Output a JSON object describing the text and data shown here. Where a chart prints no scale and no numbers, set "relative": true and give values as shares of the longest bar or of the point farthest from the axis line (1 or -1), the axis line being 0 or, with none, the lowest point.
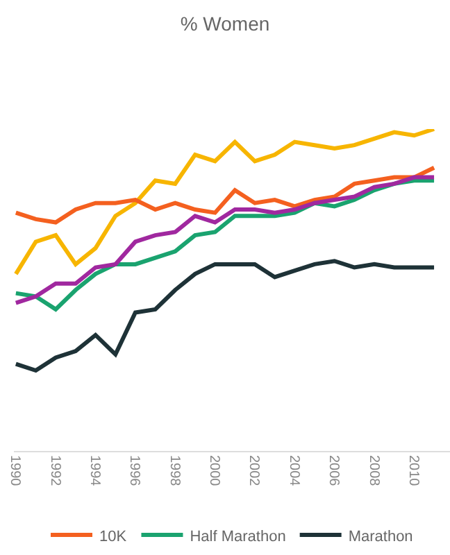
{
  "chart_data": {
    "type": "line",
    "title": "% Women",
    "relative": true,
    "x": [
      1990,
      1991,
      1992,
      1993,
      1994,
      1995,
      1996,
      1997,
      1998,
      1999,
      2000,
      2001,
      2002,
      2003,
      2004,
      2005,
      2006,
      2007,
      2008,
      2009,
      2010,
      2011
    ],
    "xlim": [
      1989.9,
      2011.8
    ],
    "xticks": [
      1990,
      1992,
      1994,
      1996,
      1998,
      2000,
      2002,
      2004,
      2006,
      2008,
      2010
    ],
    "grid": false,
    "legend": "bottom",
    "marker": "none",
    "line_style": "solid",
    "series": [
      {
        "color": "#f7b500",
        "values": [
          0.55,
          0.65,
          0.67,
          0.58,
          0.63,
          0.73,
          0.77,
          0.84,
          0.83,
          0.92,
          0.9,
          0.96,
          0.9,
          0.92,
          0.96,
          0.95,
          0.94,
          0.95,
          0.97,
          0.99,
          0.98,
          1
        ]
      },
      {
        "name": "10K",
        "color": "#f4601f",
        "values": [
          0.74,
          0.72,
          0.71,
          0.75,
          0.77,
          0.77,
          0.78,
          0.75,
          0.77,
          0.75,
          0.74,
          0.81,
          0.77,
          0.78,
          0.76,
          0.78,
          0.79,
          0.83,
          0.84,
          0.85,
          0.85,
          0.88
        ]
      },
      {
        "name": "Half Marathon",
        "color": "#1aa36f",
        "values": [
          0.49,
          0.48,
          0.44,
          0.5,
          0.55,
          0.58,
          0.58,
          0.6,
          0.62,
          0.67,
          0.68,
          0.73,
          0.73,
          0.73,
          0.74,
          0.77,
          0.76,
          0.78,
          0.81,
          0.83,
          0.84,
          0.84
        ]
      },
      {
        "name": "Marathon",
        "color": "#1e3237",
        "values": [
          0.27,
          0.25,
          0.29,
          0.31,
          0.36,
          0.3,
          0.43,
          0.44,
          0.5,
          0.55,
          0.58,
          0.58,
          0.58,
          0.54,
          0.56,
          0.58,
          0.59,
          0.57,
          0.58,
          0.57,
          0.57,
          0.57
        ]
      },
      {
        "color": "#a0289f",
        "values": [
          0.46,
          0.48,
          0.52,
          0.52,
          0.57,
          0.58,
          0.65,
          0.67,
          0.68,
          0.73,
          0.71,
          0.75,
          0.75,
          0.74,
          0.75,
          0.77,
          0.78,
          0.79,
          0.82,
          0.83,
          0.85,
          0.85
        ]
      }
    ]
  }
}
